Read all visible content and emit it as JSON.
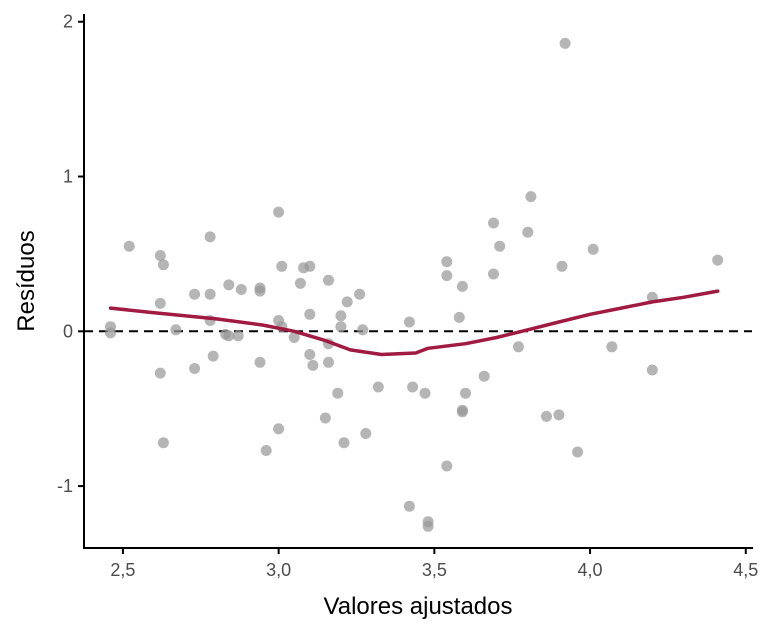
{
  "chart_data": {
    "type": "scatter",
    "xlabel": "Valores ajustados",
    "ylabel": "Resíduos",
    "xlim": [
      2.375,
      4.52
    ],
    "ylim": [
      -1.4,
      2.05
    ],
    "x_ticks": [
      2.5,
      3.0,
      3.5,
      4.0,
      4.5
    ],
    "x_tick_labels": [
      "2,5",
      "3,0",
      "3,5",
      "4,0",
      "4,5"
    ],
    "y_ticks": [
      -1,
      0,
      1,
      2
    ],
    "y_tick_labels": [
      "-1",
      "0",
      "1",
      "2"
    ],
    "grid": false,
    "reference_line": {
      "y": 0,
      "style": "dashed",
      "color": "#000000"
    },
    "points_color": "#999999",
    "smooth_color": "#a01a41",
    "points": [
      [
        2.46,
        0.03
      ],
      [
        2.46,
        -0.01
      ],
      [
        2.52,
        0.55
      ],
      [
        2.62,
        0.49
      ],
      [
        2.63,
        0.43
      ],
      [
        2.62,
        0.18
      ],
      [
        2.62,
        -0.27
      ],
      [
        2.63,
        -0.72
      ],
      [
        2.67,
        0.01
      ],
      [
        2.73,
        0.24
      ],
      [
        2.73,
        -0.24
      ],
      [
        2.78,
        0.61
      ],
      [
        2.78,
        0.24
      ],
      [
        2.78,
        0.07
      ],
      [
        2.79,
        -0.16
      ],
      [
        2.83,
        -0.02
      ],
      [
        2.84,
        0.3
      ],
      [
        2.84,
        -0.03
      ],
      [
        2.87,
        -0.03
      ],
      [
        2.88,
        0.27
      ],
      [
        2.94,
        0.26
      ],
      [
        2.94,
        0.28
      ],
      [
        2.94,
        -0.2
      ],
      [
        2.96,
        -0.77
      ],
      [
        3.0,
        0.77
      ],
      [
        3.0,
        0.07
      ],
      [
        3.01,
        0.42
      ],
      [
        3.01,
        0.03
      ],
      [
        3.0,
        -0.63
      ],
      [
        3.05,
        -0.04
      ],
      [
        3.07,
        0.31
      ],
      [
        3.08,
        0.41
      ],
      [
        3.1,
        0.42
      ],
      [
        3.1,
        0.11
      ],
      [
        3.1,
        -0.15
      ],
      [
        3.11,
        -0.22
      ],
      [
        3.16,
        0.33
      ],
      [
        3.16,
        -0.08
      ],
      [
        3.16,
        -0.2
      ],
      [
        3.15,
        -0.56
      ],
      [
        3.19,
        -0.4
      ],
      [
        3.2,
        0.1
      ],
      [
        3.2,
        0.03
      ],
      [
        3.22,
        0.19
      ],
      [
        3.21,
        -0.72
      ],
      [
        3.26,
        0.24
      ],
      [
        3.27,
        0.01
      ],
      [
        3.28,
        -0.66
      ],
      [
        3.32,
        -0.36
      ],
      [
        3.42,
        0.06
      ],
      [
        3.43,
        -0.36
      ],
      [
        3.42,
        -1.13
      ],
      [
        3.47,
        -0.4
      ],
      [
        3.48,
        -1.23
      ],
      [
        3.48,
        -1.26
      ],
      [
        3.54,
        0.45
      ],
      [
        3.54,
        0.36
      ],
      [
        3.54,
        -0.87
      ],
      [
        3.58,
        0.09
      ],
      [
        3.59,
        0.29
      ],
      [
        3.59,
        -0.51
      ],
      [
        3.59,
        -0.52
      ],
      [
        3.6,
        -0.4
      ],
      [
        3.66,
        -0.29
      ],
      [
        3.69,
        0.7
      ],
      [
        3.69,
        0.37
      ],
      [
        3.71,
        0.55
      ],
      [
        3.77,
        -0.1
      ],
      [
        3.8,
        0.64
      ],
      [
        3.81,
        0.87
      ],
      [
        3.86,
        -0.55
      ],
      [
        3.9,
        -0.54
      ],
      [
        3.91,
        0.42
      ],
      [
        3.92,
        1.86
      ],
      [
        3.96,
        -0.78
      ],
      [
        4.01,
        0.53
      ],
      [
        4.07,
        -0.1
      ],
      [
        4.2,
        0.22
      ],
      [
        4.2,
        -0.25
      ],
      [
        4.41,
        0.46
      ]
    ],
    "smooth_line": [
      [
        2.46,
        0.15
      ],
      [
        2.6,
        0.12
      ],
      [
        2.8,
        0.08
      ],
      [
        2.95,
        0.04
      ],
      [
        3.05,
        0.0
      ],
      [
        3.15,
        -0.06
      ],
      [
        3.23,
        -0.12
      ],
      [
        3.33,
        -0.15
      ],
      [
        3.44,
        -0.14
      ],
      [
        3.48,
        -0.11
      ],
      [
        3.6,
        -0.08
      ],
      [
        3.7,
        -0.04
      ],
      [
        3.8,
        0.01
      ],
      [
        3.9,
        0.06
      ],
      [
        4.0,
        0.11
      ],
      [
        4.1,
        0.15
      ],
      [
        4.2,
        0.19
      ],
      [
        4.3,
        0.22
      ],
      [
        4.41,
        0.26
      ]
    ]
  }
}
